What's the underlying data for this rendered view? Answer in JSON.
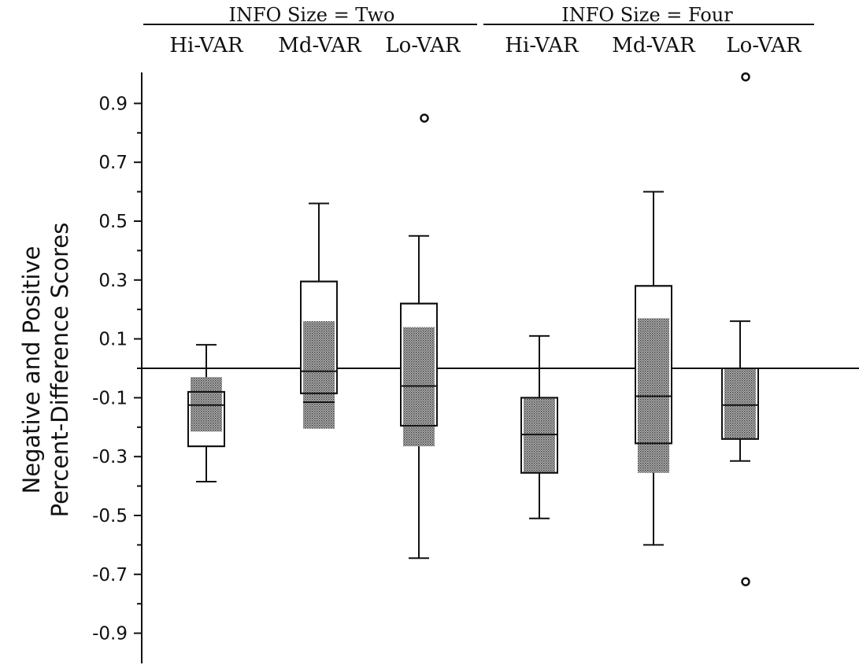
{
  "chart_data": {
    "type": "box",
    "ylabel_line1": "Negative and Positive",
    "ylabel_line2": "Percent-Difference Scores",
    "yticks": [
      "0.9",
      "0.7",
      "0.5",
      "0.3",
      "0.1",
      "-0.1",
      "-0.3",
      "-0.5",
      "-0.7",
      "-0.9"
    ],
    "ylim": [
      -1.0,
      1.01
    ],
    "reference_line": 0.0,
    "groups": [
      {
        "label": "INFO Size = Two",
        "categories": [
          {
            "name": "Hi-VAR",
            "white_box": {
              "q1": -0.265,
              "median": -0.125,
              "q3": -0.08
            },
            "shaded_box": {
              "q1": -0.215,
              "q3": -0.03
            },
            "whisker_low": -0.385,
            "whisker_high": 0.08,
            "outliers": []
          },
          {
            "name": "Md-VAR",
            "white_box": {
              "q1": -0.085,
              "median": -0.01,
              "q3": 0.295
            },
            "shaded_box": {
              "q1": -0.205,
              "q3": 0.16
            },
            "extra_line": -0.115,
            "whisker_low": -0.115,
            "whisker_high": 0.56,
            "outliers": []
          },
          {
            "name": "Lo-VAR",
            "white_box": {
              "q1": -0.195,
              "median": -0.06,
              "q3": 0.22
            },
            "shaded_box": {
              "q1": -0.265,
              "q3": 0.14
            },
            "whisker_low": -0.645,
            "whisker_high": 0.45,
            "outliers": [
              0.85
            ]
          }
        ]
      },
      {
        "label": "INFO Size = Four",
        "categories": [
          {
            "name": "Hi-VAR",
            "white_box": {
              "q1": -0.355,
              "median": -0.225,
              "q3": -0.1
            },
            "shaded_box": {
              "q1": -0.355,
              "q3": -0.1
            },
            "whisker_low": -0.51,
            "whisker_high": 0.11,
            "outliers": []
          },
          {
            "name": "Md-VAR",
            "white_box": {
              "q1": -0.255,
              "median": -0.095,
              "q3": 0.28
            },
            "shaded_box": {
              "q1": -0.355,
              "q3": 0.17
            },
            "whisker_low": -0.6,
            "whisker_high": 0.6,
            "outliers": []
          },
          {
            "name": "Lo-VAR",
            "white_box": {
              "q1": -0.24,
              "median": -0.125,
              "q3": 0.0
            },
            "shaded_box": {
              "q1": -0.24,
              "q3": 0.0
            },
            "whisker_low": -0.315,
            "whisker_high": 0.16,
            "outliers": [
              0.99,
              -0.725
            ]
          }
        ]
      }
    ],
    "colors": {
      "line": "#111111",
      "shade": "#8a8a8a",
      "box": "#ffffff"
    }
  }
}
